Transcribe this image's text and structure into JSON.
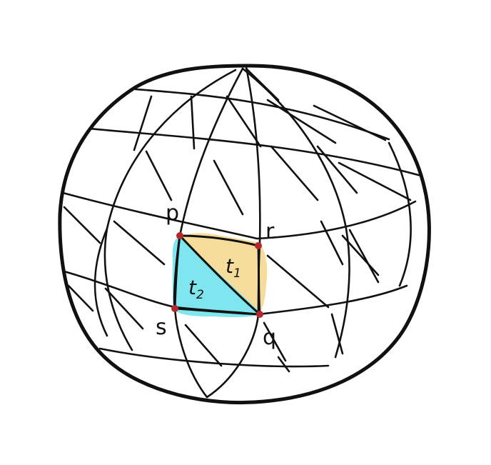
{
  "diagram": {
    "colors": {
      "outline": "#111111",
      "vertex": "#b3282d",
      "t1_fill": "#f6dc9a",
      "t2_fill": "#7fe6ef"
    },
    "vertices": {
      "p": "p",
      "q": "q",
      "r": "r",
      "s": "s"
    },
    "triangles": {
      "t1": {
        "base": "t",
        "sub": "1"
      },
      "t2": {
        "base": "t",
        "sub": "2"
      }
    }
  }
}
